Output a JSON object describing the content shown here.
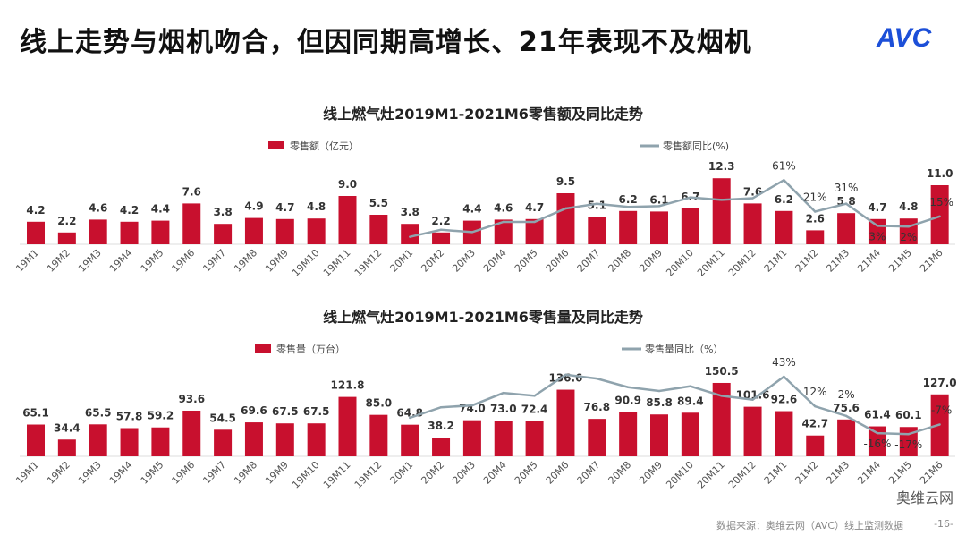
{
  "header": {
    "title": "线上走势与烟机吻合，但因同期高增长、21年表现不及烟机",
    "logo": "AVC"
  },
  "footer": {
    "source": "数据来源：奥维云网（AVC）线上监测数据",
    "page": "-16-",
    "wechat_watermark": "奥维云网"
  },
  "colors": {
    "bar": "#c8102e",
    "line": "#8fa3ad"
  },
  "chart_data": [
    {
      "type": "bar+line",
      "title": "线上燃气灶2019M1-2021M6零售额及同比走势",
      "categories": [
        "19M1",
        "19M2",
        "19M3",
        "19M4",
        "19M5",
        "19M6",
        "19M7",
        "19M8",
        "19M9",
        "19M10",
        "19M11",
        "19M12",
        "20M1",
        "20M2",
        "20M3",
        "20M4",
        "20M5",
        "20M6",
        "20M7",
        "20M8",
        "20M9",
        "20M10",
        "20M11",
        "20M12",
        "21M1",
        "21M2",
        "21M3",
        "21M4",
        "21M5",
        "21M6"
      ],
      "series": [
        {
          "name": "零售额（亿元）",
          "type": "bar",
          "values": [
            4.2,
            2.2,
            4.6,
            4.2,
            4.4,
            7.6,
            3.8,
            4.9,
            4.7,
            4.8,
            9.0,
            5.5,
            3.8,
            2.2,
            4.4,
            4.6,
            4.7,
            9.5,
            5.1,
            6.2,
            6.1,
            6.7,
            12.3,
            7.6,
            6.2,
            2.6,
            5.8,
            4.7,
            4.8,
            11.0
          ]
        },
        {
          "name": "零售额同比(%)",
          "type": "line",
          "values": [
            null,
            null,
            null,
            null,
            null,
            null,
            null,
            null,
            null,
            null,
            null,
            null,
            -11,
            -2,
            -5,
            8,
            8,
            25,
            31,
            27,
            28,
            39,
            36,
            38,
            61,
            21,
            31,
            3,
            2,
            15
          ],
          "labels": {
            "24": "61%",
            "25": "21%",
            "26": "31%",
            "27": "3%",
            "28": "2%",
            "29": "15%"
          }
        }
      ],
      "legend": "top"
    },
    {
      "type": "bar+line",
      "title": "线上燃气灶2019M1-2021M6零售量及同比走势",
      "categories": [
        "19M1",
        "19M2",
        "19M3",
        "19M4",
        "19M5",
        "19M6",
        "19M7",
        "19M8",
        "19M9",
        "19M10",
        "19M11",
        "19M12",
        "20M1",
        "20M2",
        "20M3",
        "20M4",
        "20M5",
        "20M6",
        "20M7",
        "20M8",
        "20M9",
        "20M10",
        "20M11",
        "20M12",
        "21M1",
        "21M2",
        "21M3",
        "21M4",
        "21M5",
        "21M6"
      ],
      "series": [
        {
          "name": "零售量（万台）",
          "type": "bar",
          "values": [
            65.1,
            34.4,
            65.5,
            57.8,
            59.2,
            93.6,
            54.5,
            69.6,
            67.5,
            67.5,
            121.8,
            85.0,
            64.8,
            38.2,
            74.0,
            73.0,
            72.4,
            136.6,
            76.8,
            90.9,
            85.8,
            89.4,
            150.5,
            101.6,
            92.6,
            42.7,
            75.6,
            61.4,
            60.1,
            127.0
          ]
        },
        {
          "name": "零售量同比（%）",
          "type": "line",
          "values": [
            null,
            null,
            null,
            null,
            null,
            null,
            null,
            null,
            null,
            null,
            null,
            null,
            0,
            11,
            13,
            26,
            23,
            45,
            41,
            32,
            28,
            33,
            23,
            19,
            43,
            12,
            2,
            -16,
            -17,
            -7
          ],
          "labels": {
            "24": "43%",
            "25": "12%",
            "26": "2%",
            "27": "-16%",
            "28": "-17%",
            "29": "-7%"
          }
        }
      ],
      "legend": "top"
    }
  ]
}
